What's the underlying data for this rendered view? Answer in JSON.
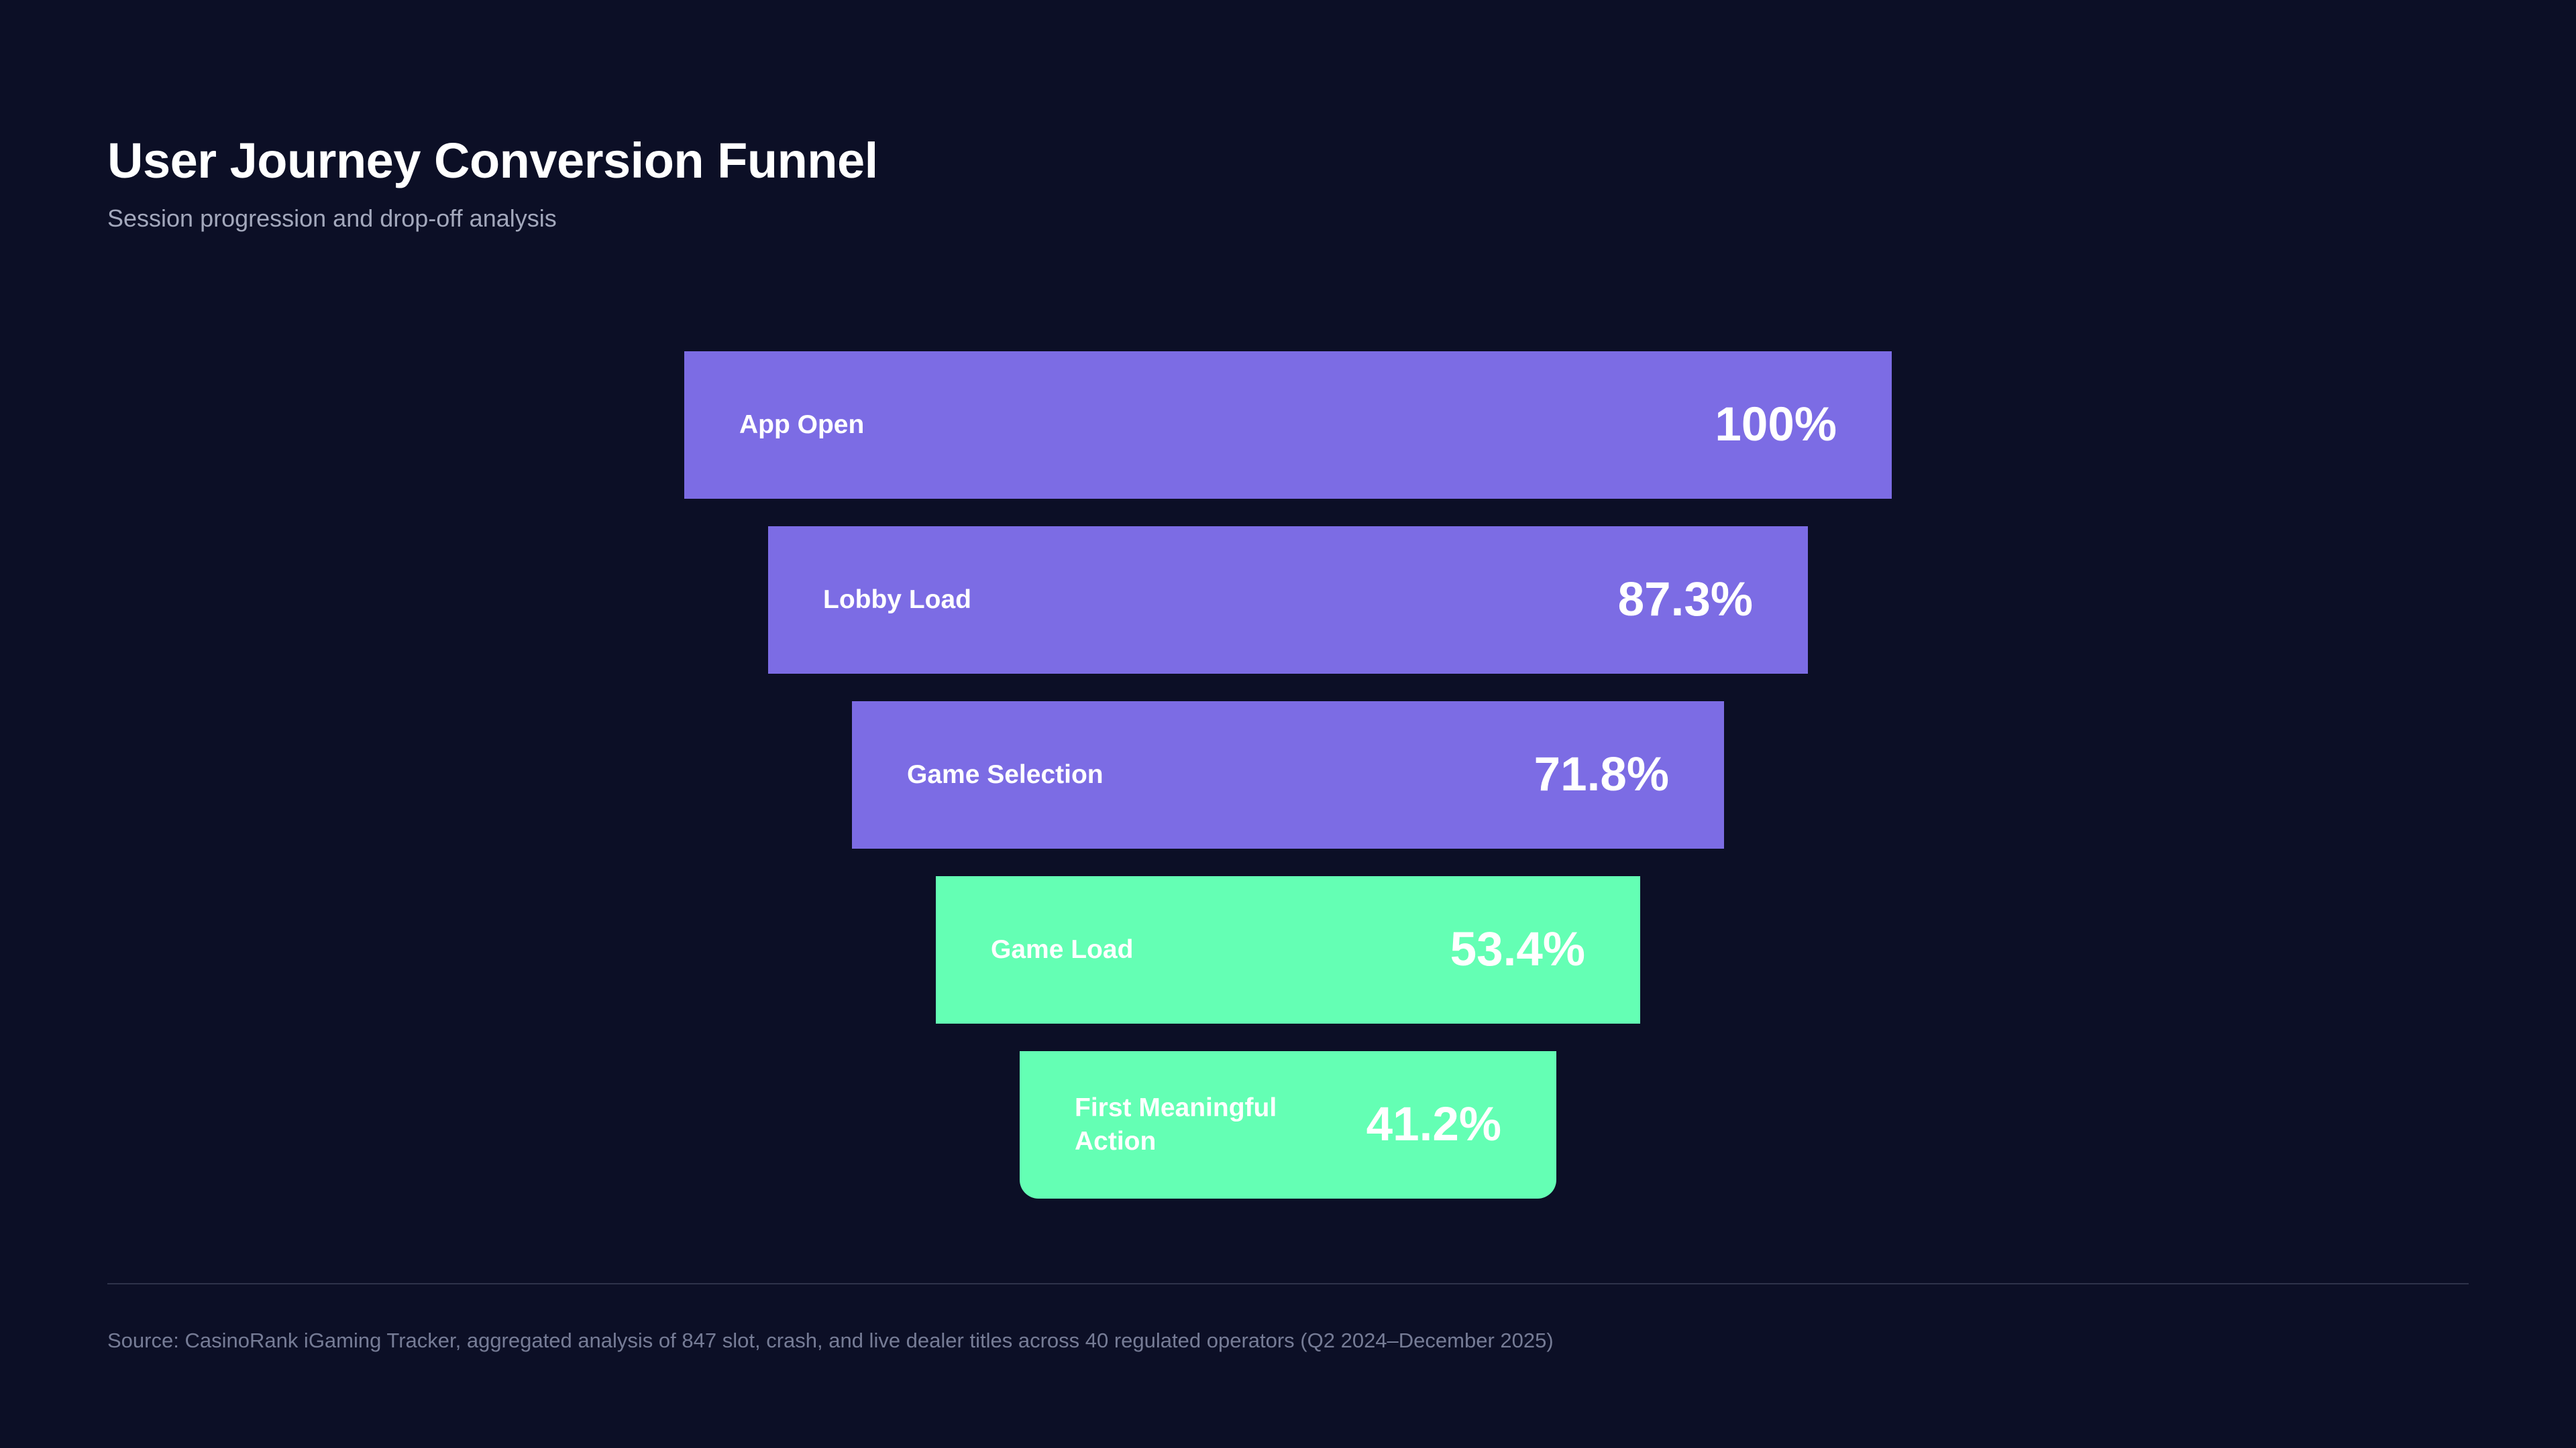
{
  "page": {
    "title": "User Journey Conversion Funnel",
    "subtitle": "Session progression and drop-off analysis",
    "source_note": "Source: CasinoRank iGaming Tracker, aggregated analysis of 847 slot, crash, and live dealer titles across 40 regulated operators (Q2 2024–December 2025)"
  },
  "colors": {
    "background": "#0C0F26",
    "stage_purple": "#7C6CE4",
    "stage_green": "#64FFB4",
    "title_text": "#FFFFFF",
    "subtitle_text": "#A3A8BC",
    "source_text": "#767C96"
  },
  "chart_data": {
    "type": "funnel",
    "title": "User Journey Conversion Funnel",
    "subtitle": "Session progression and drop-off analysis",
    "orientation": "vertical-centered",
    "value_unit": "percent of sessions",
    "stages": [
      {
        "label": "App Open",
        "value": 100,
        "value_label": "100%",
        "color": "#7C6CE4"
      },
      {
        "label": "Lobby Load",
        "value": 87.3,
        "value_label": "87.3%",
        "color": "#7C6CE4"
      },
      {
        "label": "Game Selection",
        "value": 71.8,
        "value_label": "71.8%",
        "color": "#7C6CE4"
      },
      {
        "label": "Game Load",
        "value": 53.4,
        "value_label": "53.4%",
        "color": "#64FFB4"
      },
      {
        "label": "First Meaningful Action",
        "value": 41.2,
        "value_label": "41.2%",
        "color": "#64FFB4"
      }
    ]
  }
}
